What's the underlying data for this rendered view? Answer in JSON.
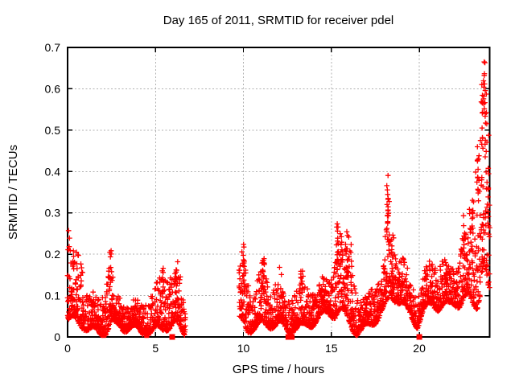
{
  "chart_data": {
    "type": "scatter",
    "title": "Day 165 of 2011, SRMTID for receiver pdel",
    "xlabel": "GPS time / hours",
    "ylabel": "SRMTID / TECUs",
    "xlim": [
      0,
      24
    ],
    "ylim": [
      0,
      0.7
    ],
    "xticks": [
      0,
      5,
      10,
      15,
      20
    ],
    "yticks": [
      0,
      0.1,
      0.2,
      0.3,
      0.4,
      0.5,
      0.6,
      0.7
    ],
    "grid": {
      "show": true,
      "style": "dotted",
      "color": "#b0b0b0"
    },
    "marker": {
      "glyph": "plus",
      "color": "#ff0000",
      "size": 7
    },
    "frame_color": "#000000",
    "legend": "none",
    "sample_rate_per_hour": 140,
    "band_envelope": [
      [
        [
          0.0,
          0.03,
          0.24
        ],
        [
          0.35,
          0.03,
          0.21
        ],
        [
          0.8,
          0.03,
          0.18
        ],
        [
          1.2,
          0.02,
          0.11
        ],
        [
          1.8,
          0.02,
          0.1
        ],
        [
          2.2,
          0.02,
          0.13
        ],
        [
          2.45,
          0.03,
          0.21
        ],
        [
          2.7,
          0.02,
          0.1
        ],
        [
          3.2,
          0.015,
          0.08
        ],
        [
          3.8,
          0.015,
          0.08
        ],
        [
          4.3,
          0.02,
          0.09
        ],
        [
          4.8,
          0.02,
          0.11
        ],
        [
          5.15,
          0.02,
          0.13
        ],
        [
          5.45,
          0.02,
          0.17
        ],
        [
          5.75,
          0.02,
          0.13
        ],
        [
          6.1,
          0.02,
          0.17
        ],
        [
          6.35,
          0.015,
          0.16
        ],
        [
          6.55,
          0.01,
          0.1
        ],
        [
          6.7,
          0.01,
          0.06
        ]
      ],
      [
        [
          9.75,
          0.04,
          0.17
        ],
        [
          10.0,
          0.04,
          0.24
        ],
        [
          10.2,
          0.03,
          0.15
        ],
        [
          10.6,
          0.03,
          0.13
        ],
        [
          10.9,
          0.03,
          0.15
        ],
        [
          11.15,
          0.03,
          0.19
        ],
        [
          11.5,
          0.025,
          0.12
        ],
        [
          11.8,
          0.02,
          0.13
        ],
        [
          12.05,
          0.02,
          0.16
        ],
        [
          12.35,
          0.015,
          0.09
        ],
        [
          12.7,
          0.02,
          0.1
        ],
        [
          13.0,
          0.03,
          0.12
        ],
        [
          13.35,
          0.03,
          0.16
        ],
        [
          13.7,
          0.035,
          0.12
        ],
        [
          14.1,
          0.04,
          0.12
        ],
        [
          14.5,
          0.04,
          0.13
        ],
        [
          14.9,
          0.05,
          0.15
        ],
        [
          15.2,
          0.05,
          0.2
        ],
        [
          15.4,
          0.06,
          0.28
        ],
        [
          15.7,
          0.06,
          0.22
        ],
        [
          15.95,
          0.05,
          0.26
        ],
        [
          16.15,
          0.04,
          0.23
        ],
        [
          16.4,
          0.02,
          0.12
        ],
        [
          16.7,
          0.015,
          0.08
        ],
        [
          17.0,
          0.02,
          0.09
        ],
        [
          17.35,
          0.03,
          0.12
        ],
        [
          17.7,
          0.04,
          0.14
        ],
        [
          18.0,
          0.06,
          0.16
        ],
        [
          18.2,
          0.08,
          0.4
        ],
        [
          18.4,
          0.1,
          0.3
        ],
        [
          18.7,
          0.1,
          0.22
        ],
        [
          19.0,
          0.09,
          0.2
        ],
        [
          19.3,
          0.07,
          0.17
        ],
        [
          19.6,
          0.05,
          0.14
        ],
        [
          19.9,
          0.03,
          0.1
        ],
        [
          20.15,
          0.05,
          0.13
        ],
        [
          20.45,
          0.06,
          0.16
        ],
        [
          20.75,
          0.07,
          0.18
        ],
        [
          21.05,
          0.07,
          0.16
        ],
        [
          21.35,
          0.08,
          0.2
        ],
        [
          21.7,
          0.08,
          0.17
        ],
        [
          22.0,
          0.09,
          0.18
        ],
        [
          22.3,
          0.09,
          0.22
        ],
        [
          22.55,
          0.1,
          0.29
        ],
        [
          22.8,
          0.09,
          0.3
        ],
        [
          23.05,
          0.07,
          0.33
        ],
        [
          23.25,
          0.06,
          0.45
        ],
        [
          23.45,
          0.1,
          0.55
        ],
        [
          23.65,
          0.18,
          0.62
        ],
        [
          23.8,
          0.15,
          0.55
        ],
        [
          23.95,
          0.1,
          0.48
        ],
        [
          24.0,
          0.1,
          0.4
        ]
      ]
    ],
    "spike_columns": [
      [
        0.05,
        0.2,
        0.26,
        4
      ],
      [
        0.35,
        0.17,
        0.21,
        5
      ],
      [
        2.45,
        0.12,
        0.21,
        8
      ],
      [
        5.4,
        0.1,
        0.17,
        8
      ],
      [
        6.15,
        0.1,
        0.17,
        10
      ],
      [
        10.0,
        0.1,
        0.235,
        12
      ],
      [
        11.1,
        0.1,
        0.18,
        8
      ],
      [
        13.3,
        0.08,
        0.16,
        8
      ],
      [
        15.35,
        0.15,
        0.28,
        12
      ],
      [
        15.9,
        0.12,
        0.26,
        10
      ],
      [
        16.15,
        0.1,
        0.23,
        8
      ],
      [
        18.2,
        0.22,
        0.41,
        14
      ],
      [
        18.45,
        0.15,
        0.3,
        10
      ],
      [
        22.55,
        0.18,
        0.3,
        12
      ],
      [
        23.05,
        0.25,
        0.33,
        8
      ],
      [
        23.35,
        0.3,
        0.46,
        10
      ],
      [
        23.6,
        0.45,
        0.62,
        10
      ],
      [
        23.7,
        0.55,
        0.68,
        10
      ],
      [
        23.8,
        0.35,
        0.6,
        8
      ],
      [
        23.9,
        0.25,
        0.45,
        6
      ]
    ],
    "zero_markers": {
      "glyph": "filled-square",
      "color": "#ff0000",
      "x": [
        5.95,
        12.55,
        12.75,
        20.0
      ]
    }
  }
}
